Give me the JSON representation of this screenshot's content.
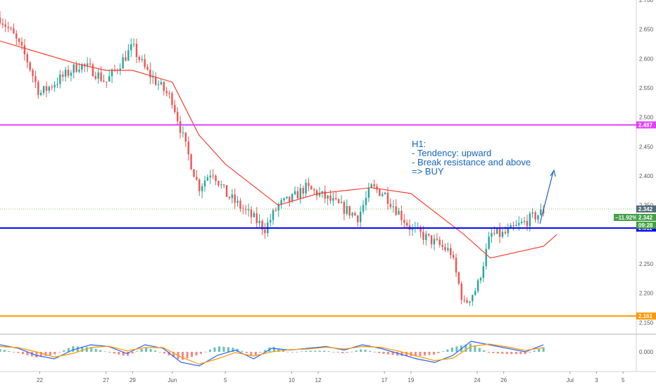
{
  "chart_data": [
    {
      "type": "line",
      "kind": "candlestick-price-chart",
      "ylim": [
        2.13,
        2.7
      ],
      "y_ticks": [
        "2.700",
        "2.650",
        "2.600",
        "2.550",
        "2.500",
        "2.450",
        "2.400",
        "2.350",
        "2.250",
        "2.200",
        "2.150"
      ],
      "y_tick_values": [
        2.7,
        2.65,
        2.6,
        2.55,
        2.5,
        2.45,
        2.4,
        2.35,
        2.25,
        2.2,
        2.15
      ],
      "x_ticks": [
        "22",
        "27",
        "29",
        "Jun",
        "5",
        "10",
        "12",
        "17",
        "19",
        "24",
        "26",
        "Jul",
        "3",
        "5"
      ],
      "x_tick_dates": [
        "2020-05-22",
        "2020-05-27",
        "2020-05-29",
        "2020-06-01",
        "2020-06-05",
        "2020-06-10",
        "2020-06-12",
        "2020-06-17",
        "2020-06-19",
        "2020-06-24",
        "2020-06-26",
        "2020-07-01",
        "2020-07-03",
        "2020-07-05"
      ],
      "xlim": [
        "2020-05-19",
        "2020-07-06"
      ],
      "grid": false,
      "series": [
        {
          "x": [
            "2020-05-19",
            "2020-05-20",
            "2020-05-21",
            "2020-05-22",
            "2020-05-25",
            "2020-05-26",
            "2020-05-27",
            "2020-05-28",
            "2020-05-29",
            "2020-05-30",
            "2020-06-01",
            "2020-06-02",
            "2020-06-03",
            "2020-06-04",
            "2020-06-05",
            "2020-06-08",
            "2020-06-09",
            "2020-06-10",
            "2020-06-11",
            "2020-06-12",
            "2020-06-15",
            "2020-06-16",
            "2020-06-17",
            "2020-06-18",
            "2020-06-19",
            "2020-06-22",
            "2020-06-23",
            "2020-06-24",
            "2020-06-25",
            "2020-06-26",
            "2020-06-29"
          ],
          "values": [
            2.67,
            2.64,
            2.6,
            2.54,
            2.59,
            2.58,
            2.56,
            2.59,
            2.62,
            2.58,
            2.53,
            2.45,
            2.38,
            2.41,
            2.37,
            2.31,
            2.35,
            2.36,
            2.38,
            2.37,
            2.33,
            2.38,
            2.37,
            2.34,
            2.31,
            2.27,
            2.18,
            2.21,
            2.3,
            2.3,
            2.34
          ]
        },
        {
          "x": [
            "2020-05-19",
            "2020-05-22",
            "2020-05-25",
            "2020-05-27",
            "2020-05-29",
            "2020-06-01",
            "2020-06-03",
            "2020-06-05",
            "2020-06-09",
            "2020-06-12",
            "2020-06-16",
            "2020-06-19",
            "2020-06-23",
            "2020-06-25",
            "2020-06-29",
            "2020-06-30"
          ],
          "values": [
            2.63,
            2.61,
            2.59,
            2.58,
            2.58,
            2.56,
            2.47,
            2.42,
            2.35,
            2.37,
            2.38,
            2.37,
            2.3,
            2.26,
            2.28,
            2.3
          ]
        }
      ],
      "horizontal_levels": [
        {
          "value": 2.487,
          "label": "2.487",
          "color": "#e040fb"
        },
        {
          "value": 2.311,
          "label": "2.311",
          "color": "#0000ff"
        },
        {
          "value": 2.161,
          "label": "2.161",
          "color": "#ff9800"
        }
      ],
      "last_price": {
        "value": 2.342,
        "label": "2.342",
        "change": "−11.92%",
        "countdown": "09:28"
      },
      "annotation": {
        "lines": [
          "H1:",
          "- Tendency: upward",
          "- Break resistance and above",
          "=> BUY"
        ],
        "color": "#1565c0"
      }
    },
    {
      "type": "line",
      "kind": "macd-oscillator",
      "y_ticks": [
        "0.000"
      ],
      "y_tick_values": [
        0
      ],
      "ylim": [
        -0.05,
        0.04
      ],
      "series": [
        {
          "color": "#2962ff",
          "values": [
            0.02,
            0.01,
            -0.01,
            -0.02,
            0.005,
            0.02,
            0.015,
            -0.005,
            0.02,
            0.01,
            -0.03,
            -0.04,
            -0.01,
            0.005,
            -0.02,
            0.01,
            0.005,
            0.01,
            0.015,
            0.005,
            0.02,
            0.01,
            -0.005,
            -0.02,
            -0.03,
            -0.01,
            0.03,
            0.02,
            0.01,
            0.0,
            0.02
          ]
        },
        {
          "color": "#ff9800",
          "values": [
            0.015,
            0.012,
            0.0,
            -0.015,
            -0.005,
            0.012,
            0.016,
            0.003,
            0.012,
            0.012,
            -0.015,
            -0.035,
            -0.02,
            -0.002,
            -0.012,
            0.0,
            0.006,
            0.008,
            0.013,
            0.008,
            0.015,
            0.013,
            0.002,
            -0.012,
            -0.025,
            -0.018,
            0.015,
            0.022,
            0.014,
            0.004,
            0.012
          ]
        }
      ]
    }
  ],
  "colors": {
    "up_candle": "#26a69a",
    "down_candle": "#ef5350",
    "moving_average": "#f44336",
    "annotation_arrow": "#1565c0",
    "last_price_tag": "#546e7a",
    "change_tag": "#43a047"
  }
}
